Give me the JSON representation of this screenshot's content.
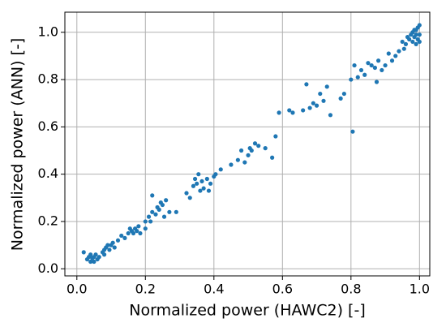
{
  "chart_data": {
    "type": "scatter",
    "xlabel": "Normalized power (HAWC2) [-]",
    "ylabel": "Normalized power (ANN) [-]",
    "color": "#1f77b4",
    "grid": true,
    "xlim": [
      -0.035,
      1.03
    ],
    "ylim": [
      -0.03,
      1.085
    ],
    "xticks": [
      {
        "value": 0,
        "label": "0.0"
      },
      0.2,
      0.4,
      0.6,
      0.8,
      {
        "value": 1,
        "label": "1.0"
      }
    ],
    "yticks": [
      {
        "value": 0,
        "label": "0.0"
      },
      0.2,
      0.4,
      0.6,
      0.8,
      {
        "value": 1,
        "label": "1.0"
      }
    ],
    "x": [
      0.02,
      0.03,
      0.035,
      0.04,
      0.04,
      0.045,
      0.05,
      0.05,
      0.055,
      0.06,
      0.065,
      0.075,
      0.08,
      0.08,
      0.085,
      0.09,
      0.095,
      0.1,
      0.105,
      0.11,
      0.12,
      0.13,
      0.14,
      0.15,
      0.155,
      0.16,
      0.165,
      0.17,
      0.175,
      0.18,
      0.185,
      0.2,
      0.2,
      0.21,
      0.215,
      0.22,
      0.23,
      0.235,
      0.24,
      0.245,
      0.25,
      0.255,
      0.26,
      0.22,
      0.27,
      0.29,
      0.32,
      0.33,
      0.34,
      0.345,
      0.35,
      0.355,
      0.36,
      0.365,
      0.37,
      0.38,
      0.385,
      0.39,
      0.4,
      0.405,
      0.42,
      0.45,
      0.47,
      0.48,
      0.49,
      0.5,
      0.505,
      0.51,
      0.52,
      0.53,
      0.55,
      0.57,
      0.58,
      0.59,
      0.62,
      0.63,
      0.66,
      0.67,
      0.68,
      0.69,
      0.7,
      0.71,
      0.72,
      0.73,
      0.74,
      0.77,
      0.78,
      0.8,
      0.805,
      0.81,
      0.82,
      0.83,
      0.84,
      0.85,
      0.86,
      0.87,
      0.875,
      0.88,
      0.89,
      0.9,
      0.91,
      0.92,
      0.93,
      0.94,
      0.95,
      0.955,
      0.96,
      0.965,
      0.97,
      0.975,
      0.98,
      0.98,
      0.985,
      0.99,
      0.99,
      0.995,
      0.995,
      1.0,
      1.0,
      1.0,
      0.99,
      0.985
    ],
    "values": [
      0.07,
      0.04,
      0.05,
      0.03,
      0.06,
      0.045,
      0.05,
      0.03,
      0.06,
      0.04,
      0.05,
      0.07,
      0.08,
      0.06,
      0.09,
      0.1,
      0.08,
      0.1,
      0.11,
      0.09,
      0.12,
      0.14,
      0.13,
      0.15,
      0.17,
      0.16,
      0.15,
      0.17,
      0.16,
      0.18,
      0.15,
      0.2,
      0.17,
      0.22,
      0.2,
      0.24,
      0.23,
      0.26,
      0.25,
      0.28,
      0.27,
      0.22,
      0.29,
      0.31,
      0.24,
      0.24,
      0.32,
      0.3,
      0.35,
      0.38,
      0.36,
      0.4,
      0.33,
      0.37,
      0.34,
      0.38,
      0.33,
      0.36,
      0.39,
      0.4,
      0.42,
      0.44,
      0.46,
      0.5,
      0.45,
      0.48,
      0.51,
      0.5,
      0.53,
      0.52,
      0.51,
      0.47,
      0.56,
      0.66,
      0.67,
      0.66,
      0.67,
      0.78,
      0.68,
      0.7,
      0.69,
      0.74,
      0.71,
      0.77,
      0.65,
      0.72,
      0.74,
      0.8,
      0.58,
      0.86,
      0.81,
      0.84,
      0.82,
      0.87,
      0.86,
      0.85,
      0.79,
      0.88,
      0.84,
      0.86,
      0.91,
      0.88,
      0.9,
      0.92,
      0.96,
      0.93,
      0.95,
      0.98,
      0.97,
      0.99,
      1.0,
      0.96,
      0.98,
      1.01,
      0.95,
      1.02,
      0.97,
      1.03,
      0.99,
      0.96,
      0.99,
      1.01
    ]
  }
}
